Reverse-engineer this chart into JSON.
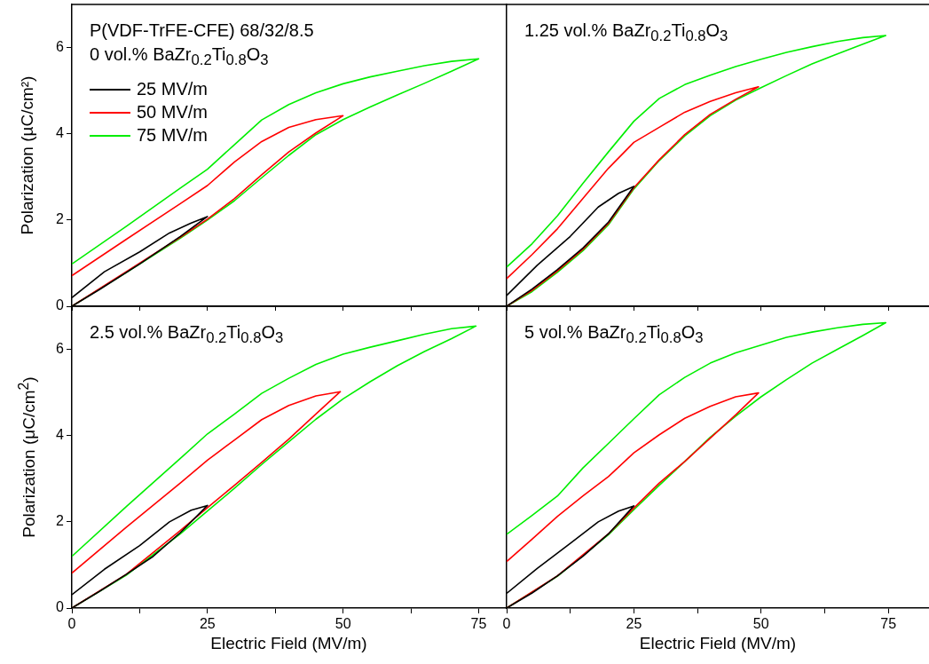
{
  "chart_data": [
    {
      "type": "line",
      "annotations": [
        "P(VDF-TrFE-CFE) 68/32/8.5",
        "0 vol.% BaZr$_{0.2}$Ti$_{0.8}$O$_{3}$"
      ],
      "ylabel": "Polarization (µC/cm²)",
      "xlim": [
        0,
        80
      ],
      "ylim": [
        0,
        7
      ],
      "xticks": [
        0,
        {
          "value": 12.5,
          "label": null
        },
        25,
        {
          "value": 37.5,
          "label": null
        },
        50,
        {
          "value": 62.5,
          "label": null
        },
        75
      ],
      "yticks": [
        0,
        2,
        4,
        6
      ],
      "tick_labels": "y",
      "legend": "top left",
      "marker": "none",
      "line_style": "solid",
      "series": [
        {
          "name": "25 MV/m",
          "color": "#000000",
          "x": [
            0,
            5,
            12.5,
            20,
            25,
            22,
            18,
            12.5,
            6,
            0
          ],
          "values": [
            0,
            0.38,
            0.98,
            1.62,
            2.08,
            1.93,
            1.7,
            1.26,
            0.8,
            0.2
          ]
        },
        {
          "name": "50 MV/m",
          "color": "#ff0000",
          "x": [
            0,
            10,
            20,
            25,
            30,
            35,
            40,
            45,
            50,
            45,
            40,
            35,
            30,
            25,
            20,
            10,
            0
          ],
          "values": [
            0,
            0.8,
            1.6,
            2.02,
            2.5,
            3.05,
            3.58,
            4.02,
            4.42,
            4.33,
            4.15,
            3.82,
            3.35,
            2.8,
            2.38,
            1.55,
            0.71
          ]
        },
        {
          "name": "75 MV/m",
          "color": "#00ee00",
          "x": [
            0,
            10,
            20,
            25,
            30,
            35,
            40,
            45,
            50,
            55,
            60,
            65,
            70,
            75,
            70,
            65,
            60,
            55,
            50,
            45,
            40,
            35,
            30,
            25,
            20,
            10,
            0
          ],
          "values": [
            0,
            0.78,
            1.58,
            2.0,
            2.45,
            2.98,
            3.5,
            3.98,
            4.33,
            4.62,
            4.9,
            5.17,
            5.45,
            5.74,
            5.68,
            5.58,
            5.45,
            5.32,
            5.16,
            4.95,
            4.68,
            4.32,
            3.75,
            3.18,
            2.74,
            1.85,
            0.98
          ]
        }
      ]
    },
    {
      "type": "line",
      "annotations": [
        "1.25 vol.% BaZr$_{0.2}$Ti$_{0.8}$O$_{3}$"
      ],
      "xlim": [
        0,
        83
      ],
      "ylim": [
        0,
        7
      ],
      "xticks": [
        0,
        {
          "value": 12.5,
          "label": null
        },
        25,
        {
          "value": 37.5,
          "label": null
        },
        50,
        {
          "value": 62.5,
          "label": null
        },
        75
      ],
      "yticks": [
        0,
        2,
        4,
        6
      ],
      "tick_labels": false,
      "marker": "none",
      "line_style": "solid",
      "series": [
        {
          "color": "#000000",
          "x": [
            0,
            5,
            10,
            15,
            20,
            25,
            22,
            18,
            12.5,
            6,
            0
          ],
          "values": [
            0,
            0.4,
            0.85,
            1.35,
            1.95,
            2.78,
            2.62,
            2.3,
            1.62,
            0.95,
            0.25
          ]
        },
        {
          "color": "#ff0000",
          "x": [
            0,
            5,
            10,
            15,
            20,
            25,
            30,
            35,
            40,
            45,
            49.5,
            45,
            40,
            35,
            30,
            25,
            20,
            15,
            10,
            5,
            0
          ],
          "values": [
            0,
            0.37,
            0.82,
            1.32,
            1.92,
            2.75,
            3.4,
            3.98,
            4.45,
            4.8,
            5.09,
            4.95,
            4.75,
            4.5,
            4.15,
            3.8,
            3.2,
            2.5,
            1.8,
            1.2,
            0.64
          ]
        },
        {
          "color": "#00ee00",
          "x": [
            0,
            5,
            10,
            15,
            20,
            25,
            30,
            35,
            40,
            45,
            50,
            55,
            60,
            65,
            70,
            74.5,
            70,
            65,
            60,
            55,
            50,
            45,
            40,
            35,
            30,
            25,
            20,
            15,
            10,
            5,
            0
          ],
          "values": [
            0,
            0.34,
            0.79,
            1.29,
            1.89,
            2.72,
            3.38,
            3.95,
            4.42,
            4.78,
            5.07,
            5.35,
            5.62,
            5.85,
            6.08,
            6.28,
            6.23,
            6.14,
            6.02,
            5.89,
            5.73,
            5.56,
            5.36,
            5.14,
            4.82,
            4.29,
            3.58,
            2.85,
            2.1,
            1.45,
            0.91
          ]
        }
      ]
    },
    {
      "type": "line",
      "annotations": [
        "2.5 vol.% BaZr$_{0.2}$Ti$_{0.8}$O$_{3}$"
      ],
      "xlabel": "Electric Field (MV/m)",
      "ylabel": "Polarization (μC/cm$^{2}$)",
      "xlim": [
        0,
        80
      ],
      "ylim": [
        0,
        7
      ],
      "xticks": [
        0,
        {
          "value": 12.5,
          "label": null
        },
        25,
        {
          "value": 37.5,
          "label": null
        },
        50,
        {
          "value": 62.5,
          "label": null
        },
        75
      ],
      "yticks": [
        0,
        2,
        4,
        6
      ],
      "marker": "none",
      "line_style": "solid",
      "series": [
        {
          "color": "#000000",
          "x": [
            0,
            5,
            10,
            15,
            20,
            25,
            22,
            18,
            12.5,
            6,
            0
          ],
          "values": [
            0,
            0.38,
            0.78,
            1.2,
            1.75,
            2.38,
            2.27,
            2.0,
            1.45,
            0.9,
            0.31
          ]
        },
        {
          "color": "#ff0000",
          "x": [
            0,
            10,
            20,
            25,
            30,
            35,
            40,
            45,
            49.5,
            45,
            40,
            35,
            30,
            25,
            20,
            10,
            0
          ],
          "values": [
            0,
            0.78,
            1.8,
            2.33,
            2.85,
            3.38,
            3.92,
            4.5,
            5.02,
            4.92,
            4.7,
            4.37,
            3.9,
            3.43,
            2.9,
            1.87,
            0.81
          ]
        },
        {
          "color": "#00ee00",
          "x": [
            0,
            10,
            20,
            25,
            30,
            35,
            40,
            45,
            50,
            55,
            60,
            65,
            70,
            74.5,
            70,
            65,
            60,
            55,
            50,
            45,
            40,
            35,
            30,
            25,
            20,
            10,
            0
          ],
          "values": [
            0,
            0.76,
            1.72,
            2.25,
            2.78,
            3.33,
            3.86,
            4.38,
            4.85,
            5.25,
            5.62,
            5.95,
            6.25,
            6.54,
            6.48,
            6.35,
            6.2,
            6.05,
            5.89,
            5.65,
            5.33,
            4.98,
            4.5,
            4.04,
            3.47,
            2.35,
            1.2
          ]
        }
      ]
    },
    {
      "type": "line",
      "annotations": [
        "5 vol.% BaZr$_{0.2}$Ti$_{0.8}$O$_{3}$"
      ],
      "xlabel": "Electric Field (MV/m)",
      "xlim": [
        0,
        83
      ],
      "ylim": [
        0,
        7
      ],
      "xticks": [
        0,
        {
          "value": 12.5,
          "label": null
        },
        25,
        {
          "value": 37.5,
          "label": null
        },
        50,
        {
          "value": 62.5,
          "label": null
        },
        75
      ],
      "yticks": [
        0,
        2,
        4,
        6
      ],
      "tick_labels": "x",
      "marker": "none",
      "line_style": "solid",
      "series": [
        {
          "color": "#000000",
          "x": [
            0,
            5,
            10,
            15,
            20,
            25,
            22,
            18,
            12.5,
            6,
            0
          ],
          "values": [
            0,
            0.35,
            0.75,
            1.2,
            1.72,
            2.37,
            2.25,
            2.0,
            1.5,
            0.92,
            0.34
          ]
        },
        {
          "color": "#ff0000",
          "x": [
            0,
            10,
            20,
            25,
            30,
            35,
            40,
            45,
            49.5,
            45,
            40,
            35,
            30,
            25,
            20,
            15,
            10,
            5,
            0
          ],
          "values": [
            0,
            0.75,
            1.72,
            2.32,
            2.9,
            3.4,
            3.94,
            4.48,
            4.99,
            4.9,
            4.68,
            4.4,
            4.02,
            3.6,
            3.05,
            2.6,
            2.13,
            1.6,
            1.08
          ]
        },
        {
          "color": "#00ee00",
          "x": [
            0,
            10,
            20,
            25,
            30,
            35,
            40,
            45,
            50,
            55,
            60,
            65,
            70,
            74.5,
            70,
            65,
            60,
            55,
            50,
            45,
            40,
            35,
            30,
            25,
            20,
            15,
            10,
            5,
            0
          ],
          "values": [
            0,
            0.74,
            1.7,
            2.28,
            2.85,
            3.4,
            3.96,
            4.45,
            4.9,
            5.3,
            5.68,
            6.0,
            6.32,
            6.62,
            6.58,
            6.5,
            6.4,
            6.28,
            6.1,
            5.92,
            5.68,
            5.35,
            4.95,
            4.39,
            3.82,
            3.25,
            2.6,
            2.15,
            1.71
          ]
        }
      ]
    }
  ]
}
